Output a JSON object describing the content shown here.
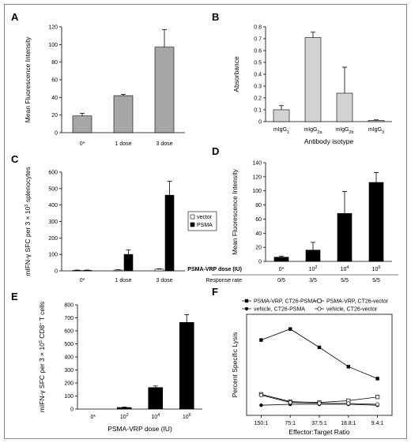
{
  "chart_data": [
    {
      "panel": "A",
      "type": "bar",
      "categories": [
        "0*",
        "1 dose",
        "3 dose"
      ],
      "values": [
        19,
        42,
        97
      ],
      "errors": [
        3,
        1.5,
        20
      ],
      "ylabel": "Mean Fluorescence Intensity",
      "ylim": [
        0,
        120
      ],
      "yticks": [
        0,
        20,
        40,
        60,
        80,
        100,
        120
      ],
      "colors": {
        "bar": "#a6a6a6"
      }
    },
    {
      "panel": "B",
      "type": "bar",
      "categories": [
        "mIgG1",
        "mIgG2a",
        "mIgG2b",
        "mIgG3"
      ],
      "category_labels": [
        {
          "base": "mIgG",
          "sub": "1"
        },
        {
          "base": "mIgG",
          "sub": "2a"
        },
        {
          "base": "mIgG",
          "sub": "2b"
        },
        {
          "base": "mIgG",
          "sub": "3"
        }
      ],
      "values": [
        0.1,
        0.71,
        0.24,
        0.01
      ],
      "errors": [
        0.035,
        0.045,
        0.22,
        0.005
      ],
      "ylabel": "Absorbance",
      "xlabel": "Antibody isotype",
      "ylim": [
        0,
        0.8
      ],
      "yticks": [
        0,
        0.1,
        0.2,
        0.3,
        0.4,
        0.5,
        0.6,
        0.7,
        0.8
      ],
      "colors": {
        "bar": "#d4d4d4"
      }
    },
    {
      "panel": "C",
      "type": "bar",
      "categories": [
        "0*",
        "1 dose",
        "3 dose"
      ],
      "series": [
        {
          "name": "vector",
          "values": [
            3,
            5,
            10
          ],
          "errors": [
            2,
            2,
            3
          ],
          "color": "#ffffff"
        },
        {
          "name": "PSMA",
          "values": [
            3,
            100,
            460
          ],
          "errors": [
            2,
            28,
            85
          ],
          "color": "#000000"
        }
      ],
      "ylabel": {
        "parts": [
          "mIFN-γ SFC per 3 × 10",
          "5",
          " splenocytes"
        ]
      },
      "ylim": [
        0,
        600
      ],
      "yticks": [
        0,
        100,
        200,
        300,
        400,
        500,
        600
      ],
      "legend": "right"
    },
    {
      "panel": "D",
      "type": "bar",
      "categories": [
        "0*",
        "10^2",
        "10^4",
        "10^6"
      ],
      "category_labels": [
        {
          "base": "0*",
          "sup": ""
        },
        {
          "base": "10",
          "sup": "2"
        },
        {
          "base": "10",
          "sup": "4"
        },
        {
          "base": "10",
          "sup": "6"
        }
      ],
      "values": [
        6,
        16,
        68,
        112
      ],
      "errors": [
        1.5,
        11,
        31,
        14
      ],
      "ylabel": "Mean Fluorescence Intensity",
      "xlabel": "PSMA-VRP dose (IU)",
      "ylim": [
        0,
        140
      ],
      "yticks": [
        0,
        20,
        40,
        60,
        80,
        100,
        120,
        140
      ],
      "response_label": "Response rate",
      "response_rates": [
        "0/5",
        "3/5",
        "5/5",
        "5/5"
      ],
      "colors": {
        "bar": "#000000"
      }
    },
    {
      "panel": "E",
      "type": "bar",
      "categories": [
        "0*",
        "10^2",
        "10^4",
        "10^6"
      ],
      "category_labels": [
        {
          "base": "0*",
          "sup": ""
        },
        {
          "base": "10",
          "sup": "2"
        },
        {
          "base": "10",
          "sup": "4"
        },
        {
          "base": "10",
          "sup": "6"
        }
      ],
      "values": [
        0,
        12,
        165,
        665
      ],
      "errors": [
        0,
        4,
        12,
        60
      ],
      "ylabel": {
        "parts": [
          "mIFN-γ SFC per 3 × 10",
          "5",
          " CD8",
          "+",
          " T cells"
        ]
      },
      "xlabel": "PSMA-VRP dose (IU)",
      "ylim": [
        0,
        800
      ],
      "yticks": [
        0,
        100,
        200,
        300,
        400,
        500,
        600,
        700,
        800
      ],
      "colors": {
        "bar": "#000000"
      }
    },
    {
      "panel": "F",
      "type": "line",
      "categories": [
        "150:1",
        "75:1",
        "37.5:1",
        "18.8:1",
        "9.4:1"
      ],
      "series": [
        {
          "name": "PSMA-VRP, CT26-PSMA",
          "values": [
            62,
            74,
            54,
            33,
            20
          ],
          "marker": "square-filled"
        },
        {
          "name": "PSMA-VRP, CT26-vector",
          "values": [
            3,
            -5,
            -6,
            -4,
            0
          ],
          "marker": "square-open"
        },
        {
          "name": "vehicle, CT26-PSMA",
          "values": [
            -9,
            -8,
            -8,
            -8,
            -9
          ],
          "marker": "circle-filled"
        },
        {
          "name": "vehicle, CT26-vector",
          "values": [
            2,
            -6,
            -7,
            -7,
            -8
          ],
          "marker": "circle-open"
        }
      ],
      "ylabel": "Percent Specific Lysis",
      "xlabel": "Effector:Target Ratio",
      "ylim": [
        -20,
        90
      ],
      "legend": "top"
    }
  ]
}
